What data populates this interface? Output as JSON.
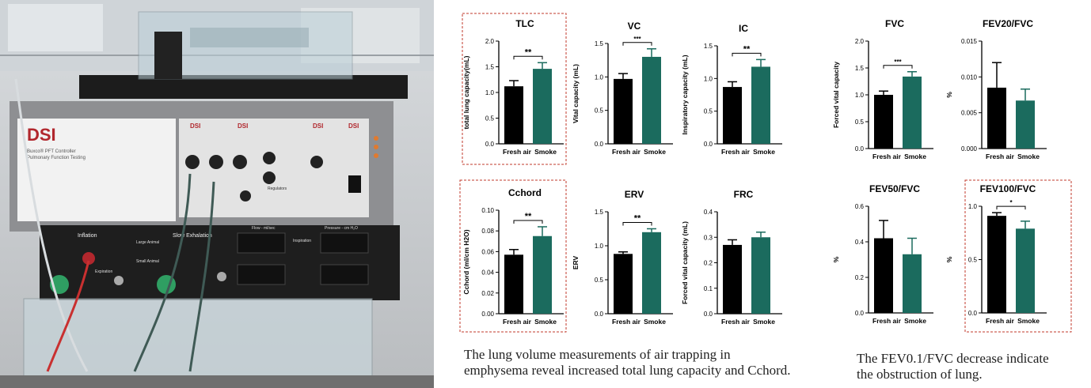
{
  "photo": {
    "brand": "DSI",
    "controller_line1": "Buxco® PFT Controller",
    "controller_line2": "Pulmonary Function Testing",
    "label_inflation": "Inflation",
    "label_slow_exhalation": "Slow Exhalation",
    "label_large_animal": "Large Animal",
    "label_small_animal": "Small Animal",
    "label_expiration": "Expiration",
    "label_flow": "Flow - ml/sec",
    "label_pressure": "Pressure - cm H₂O",
    "label_inspiration": "Inspiration",
    "label_regulators": "Regulators"
  },
  "captions": {
    "left_line1": "The lung volume measurements of air trapping in",
    "left_line2": "emphysema reveal increased total lung capacity and Cchord.",
    "right_line1": "The FEV0.1/FVC decrease indicate",
    "right_line2": "the obstruction of lung."
  },
  "colors": {
    "fresh_air": "#000000",
    "smoke": "#1b6b5e",
    "highlight_box": "#c0392b"
  },
  "chart_data": [
    {
      "type": "bar",
      "title": "TLC",
      "ylabel": "total lung capacity(mL)",
      "categories": [
        "Fresh air",
        "Smoke"
      ],
      "values": [
        1.12,
        1.46
      ],
      "errors": [
        0.11,
        0.12
      ],
      "ylim": [
        0.0,
        2.0
      ],
      "yticks": [
        "0.0",
        "0.5",
        "1.0",
        "1.5",
        "2.0"
      ],
      "significance": "**",
      "highlighted": true
    },
    {
      "type": "bar",
      "title": "VC",
      "ylabel": "Vital capacity (mL)",
      "categories": [
        "Fresh air",
        "Smoke"
      ],
      "values": [
        0.97,
        1.3
      ],
      "errors": [
        0.08,
        0.12
      ],
      "ylim": [
        0.0,
        1.5
      ],
      "yticks": [
        "0.0",
        "0.5",
        "1.0",
        "1.5"
      ],
      "significance": "***",
      "highlighted": false
    },
    {
      "type": "bar",
      "title": "IC",
      "ylabel": "Inspiratory capacity (mL)",
      "categories": [
        "Fresh air",
        "Smoke"
      ],
      "values": [
        0.87,
        1.18
      ],
      "errors": [
        0.08,
        0.11
      ],
      "ylim": [
        0.0,
        1.5
      ],
      "yticks": [
        "0.0",
        "0.5",
        "1.0",
        "1.5"
      ],
      "significance": "**",
      "highlighted": false
    },
    {
      "type": "bar",
      "title": "FVC",
      "ylabel": "Forced vital capacity",
      "categories": [
        "Fresh air",
        "Smoke"
      ],
      "values": [
        1.0,
        1.34
      ],
      "errors": [
        0.07,
        0.09
      ],
      "ylim": [
        0.0,
        2.0
      ],
      "yticks": [
        "0.0",
        "0.5",
        "1.0",
        "1.5",
        "2.0"
      ],
      "significance": "***",
      "highlighted": false
    },
    {
      "type": "bar",
      "title": "FEV20/FVC",
      "ylabel": "%",
      "categories": [
        "Fresh air",
        "Smoke"
      ],
      "values": [
        0.0085,
        0.0067
      ],
      "errors": [
        0.0035,
        0.0016
      ],
      "ylim": [
        0.0,
        0.015
      ],
      "yticks": [
        "0.000",
        "0.005",
        "0.010",
        "0.015"
      ],
      "significance": "",
      "highlighted": false
    },
    {
      "type": "bar",
      "title": "Cchord",
      "ylabel": "Cchord (ml/cm H2O)",
      "categories": [
        "Fresh air",
        "Smoke"
      ],
      "values": [
        0.057,
        0.075
      ],
      "errors": [
        0.005,
        0.009
      ],
      "ylim": [
        0.0,
        0.1
      ],
      "yticks": [
        "0.00",
        "0.02",
        "0.04",
        "0.06",
        "0.08",
        "0.10"
      ],
      "significance": "**",
      "highlighted": true
    },
    {
      "type": "bar",
      "title": "ERV",
      "ylabel": "ERV",
      "categories": [
        "Fresh air",
        "Smoke"
      ],
      "values": [
        0.88,
        1.2
      ],
      "errors": [
        0.03,
        0.05
      ],
      "ylim": [
        0.0,
        1.5
      ],
      "yticks": [
        "0.0",
        "0.5",
        "1.0",
        "1.5"
      ],
      "significance": "**",
      "highlighted": false
    },
    {
      "type": "bar",
      "title": "FRC",
      "ylabel": "Forced vital capacity (mL)",
      "categories": [
        "Fresh air",
        "Smoke"
      ],
      "values": [
        0.27,
        0.3
      ],
      "errors": [
        0.02,
        0.02
      ],
      "ylim": [
        0.0,
        0.4
      ],
      "yticks": [
        "0.0",
        "0.1",
        "0.2",
        "0.3",
        "0.4"
      ],
      "significance": "",
      "highlighted": false
    },
    {
      "type": "bar",
      "title": "FEV50/FVC",
      "ylabel": "%",
      "categories": [
        "Fresh air",
        "Smoke"
      ],
      "values": [
        0.42,
        0.33
      ],
      "errors": [
        0.1,
        0.09
      ],
      "ylim": [
        0.0,
        0.6
      ],
      "yticks": [
        "0.0",
        "0.2",
        "0.4",
        "0.6"
      ],
      "significance": "",
      "highlighted": false
    },
    {
      "type": "bar",
      "title": "FEV100/FVC",
      "ylabel": "%",
      "categories": [
        "Fresh air",
        "Smoke"
      ],
      "values": [
        0.91,
        0.79
      ],
      "errors": [
        0.03,
        0.07
      ],
      "ylim": [
        0.0,
        1.0
      ],
      "yticks": [
        "0.0",
        "0.5",
        "1.0"
      ],
      "significance": "*",
      "highlighted": true
    }
  ]
}
